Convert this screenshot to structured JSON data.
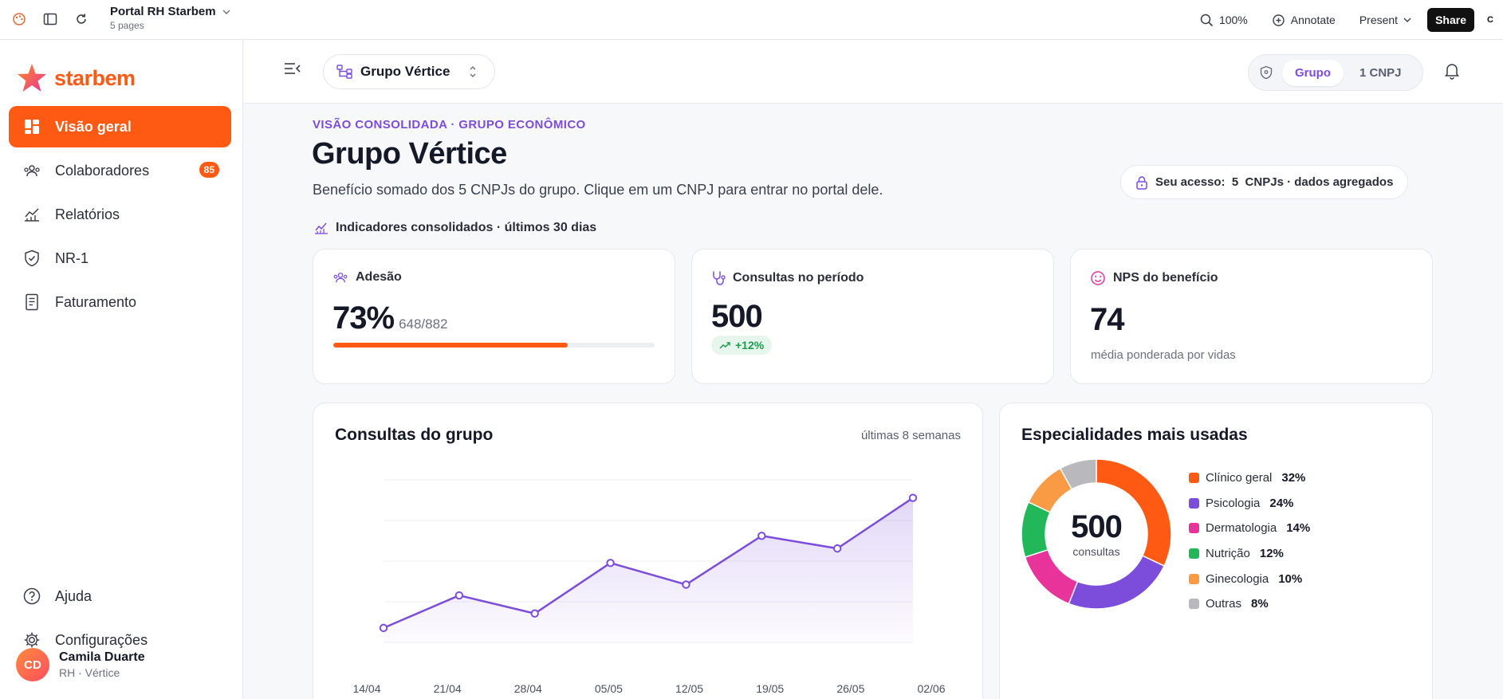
{
  "topbar": {
    "project_name": "Portal RH Starbem",
    "project_sub": "5 pages",
    "zoom": "100%",
    "annotate": "Annotate",
    "present": "Present",
    "share": "Share",
    "avatar_letter": "C"
  },
  "sidebar": {
    "logo": "starbem",
    "items": [
      {
        "label": "Visão geral"
      },
      {
        "label": "Colaboradores",
        "badge": "85"
      },
      {
        "label": "Relatórios"
      },
      {
        "label": "NR-1"
      },
      {
        "label": "Faturamento"
      }
    ],
    "bottom": [
      {
        "label": "Ajuda"
      },
      {
        "label": "Configurações"
      }
    ],
    "user": {
      "initials": "CD",
      "name": "Camila Duarte",
      "role": "RH · Vértice"
    }
  },
  "header": {
    "group_selector": "Grupo Vértice",
    "scope_options": [
      "Grupo",
      "1 CNPJ"
    ]
  },
  "page": {
    "eyebrow": "VISÃO CONSOLIDADA · GRUPO ECONÔMICO",
    "title": "Grupo Vértice",
    "lead": "Benefício somado dos 5 CNPJs do grupo. Clique em um CNPJ para entrar no portal dele.",
    "access": "Seu acesso:  5  CNPJs · dados agregados",
    "indicators_title": "Indicadores consolidados · últimos 30 dias"
  },
  "kpis": {
    "adesao": {
      "label": "Adesão",
      "value": "73%",
      "detail": "648/882",
      "progress": 0.73
    },
    "consultas": {
      "label": "Consultas no período",
      "value": "500",
      "delta": "+12%"
    },
    "nps": {
      "label": "NPS do benefício",
      "value": "74",
      "note": "média ponderada por vidas"
    }
  },
  "chart_data": [
    {
      "type": "area",
      "title": "Consultas do grupo",
      "subtitle": "últimas 8 semanas",
      "x": [
        "14/04",
        "21/04",
        "28/04",
        "05/05",
        "12/05",
        "19/05",
        "26/05",
        "02/06"
      ],
      "values": [
        48,
        66,
        56,
        84,
        72,
        99,
        92,
        120
      ],
      "ylim": [
        40,
        130
      ],
      "grid": true,
      "color": "#7c4ddb"
    },
    {
      "type": "pie",
      "title": "Especialidades mais usadas",
      "center_value": "500",
      "center_label": "consultas",
      "categories": [
        "Clínico geral",
        "Psicologia",
        "Dermatologia",
        "Nutrição",
        "Ginecologia",
        "Outras"
      ],
      "values": [
        32,
        24,
        14,
        12,
        10,
        8
      ],
      "labels": [
        "32%",
        "24%",
        "14%",
        "12%",
        "10%",
        "8%"
      ],
      "colors": [
        "#ff5a14",
        "#7c4ddb",
        "#e8339a",
        "#22b85a",
        "#f99a45",
        "#b9b9bd"
      ]
    }
  ]
}
